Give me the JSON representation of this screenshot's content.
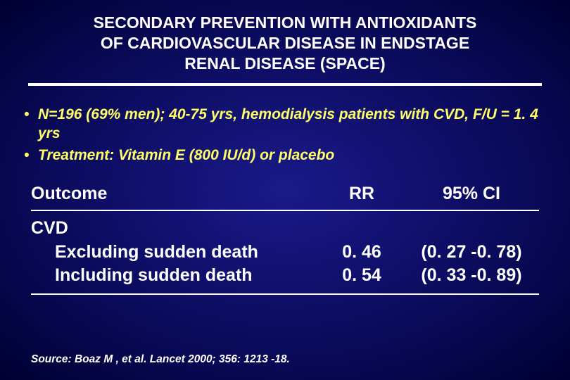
{
  "title": {
    "line1": "SECONDARY PREVENTION WITH ANTIOXIDANTS",
    "line2": "OF CARDIOVASCULAR DISEASE IN ENDSTAGE",
    "line3": "RENAL DISEASE (SPACE)"
  },
  "bullets": [
    "N=196 (69% men); 40-75 yrs, hemodialysis patients with CVD, F/U = 1. 4 yrs",
    "Treatment:  Vitamin E (800 IU/d) or placebo"
  ],
  "table": {
    "headers": {
      "outcome": "Outcome",
      "rr": "RR",
      "ci": "95% CI"
    },
    "rows": [
      {
        "outcome": "CVD",
        "rr": "",
        "ci": "",
        "indent": 0
      },
      {
        "outcome": "Excluding sudden death",
        "rr": "0. 46",
        "ci": "(0. 27 -0. 78)",
        "indent": 1
      },
      {
        "outcome": "Including sudden death",
        "rr": "0. 54",
        "ci": "(0. 33 -0. 89)",
        "indent": 1
      }
    ]
  },
  "source": "Source:  Boaz M , et al.  Lancet 2000; 356: 1213 -18.",
  "style": {
    "background_gradient": [
      "#1a1a8a",
      "#0a0a5a",
      "#000033"
    ],
    "text_color": "#ffffff",
    "bullet_color": "#ffff66",
    "title_fontsize": 23,
    "bullet_fontsize": 21,
    "table_fontsize": 25,
    "source_fontsize": 15.5,
    "hr_color": "#ffffff"
  }
}
